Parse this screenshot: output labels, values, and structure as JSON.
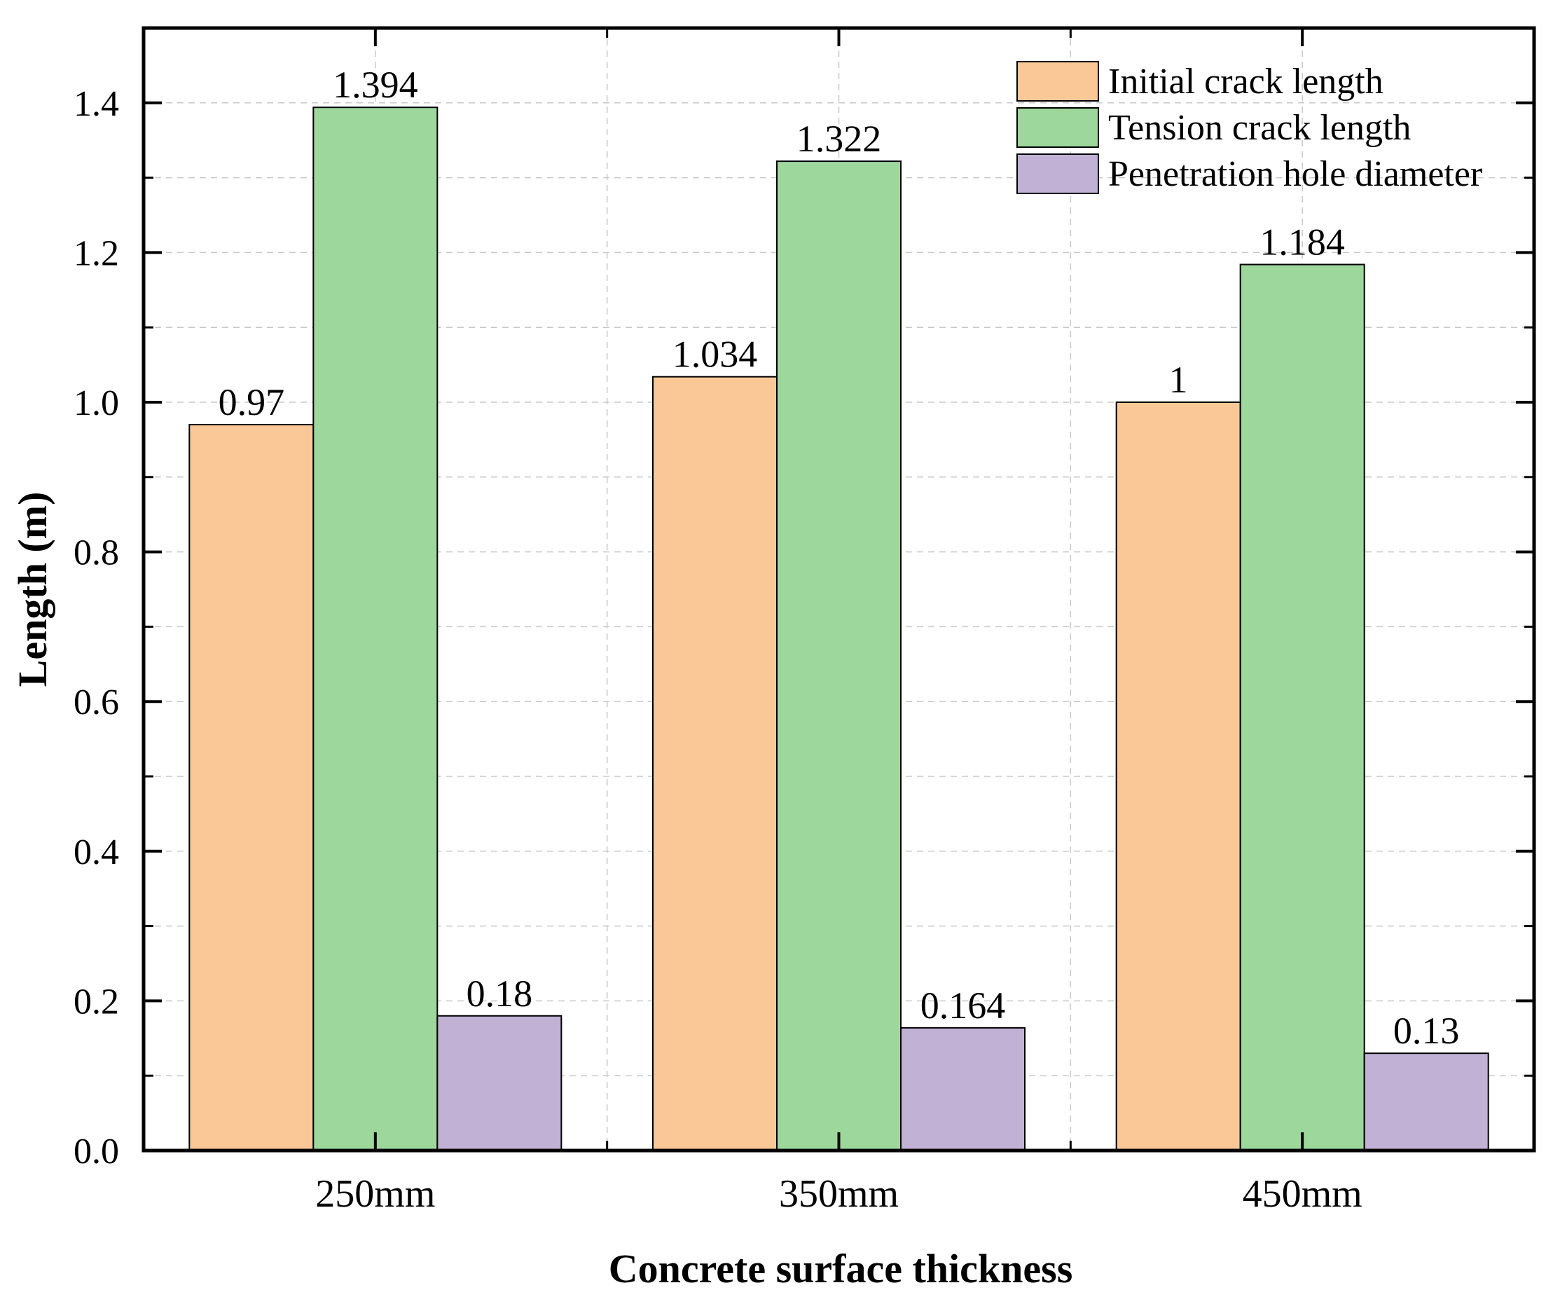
{
  "chart_data": {
    "type": "bar",
    "title": "",
    "xlabel": "Concrete surface thickness",
    "ylabel": "Length (m)",
    "categories": [
      "250mm",
      "350mm",
      "450mm"
    ],
    "series": [
      {
        "name": "Initial crack length",
        "values": [
          0.97,
          1.034,
          1.0
        ],
        "labels": [
          "0.97",
          "1.034",
          "1"
        ],
        "color": "#F9C896"
      },
      {
        "name": "Tension crack length",
        "values": [
          1.394,
          1.322,
          1.184
        ],
        "labels": [
          "1.394",
          "1.322",
          "1.184"
        ],
        "color": "#9ED79B"
      },
      {
        "name": "Penetration hole diameter",
        "values": [
          0.18,
          0.164,
          0.13
        ],
        "labels": [
          "0.18",
          "0.164",
          "0.13"
        ],
        "color": "#C1B1D5"
      }
    ],
    "ylim": [
      0,
      1.5
    ],
    "yticks": [
      "0.0",
      "0.2",
      "0.4",
      "0.6",
      "0.8",
      "1.0",
      "1.2",
      "1.4"
    ],
    "ytick_values": [
      0,
      0.2,
      0.4,
      0.6,
      0.8,
      1.0,
      1.2,
      1.4
    ],
    "yminor_step": 0.1,
    "grid": true,
    "legend_position": "top-right"
  }
}
